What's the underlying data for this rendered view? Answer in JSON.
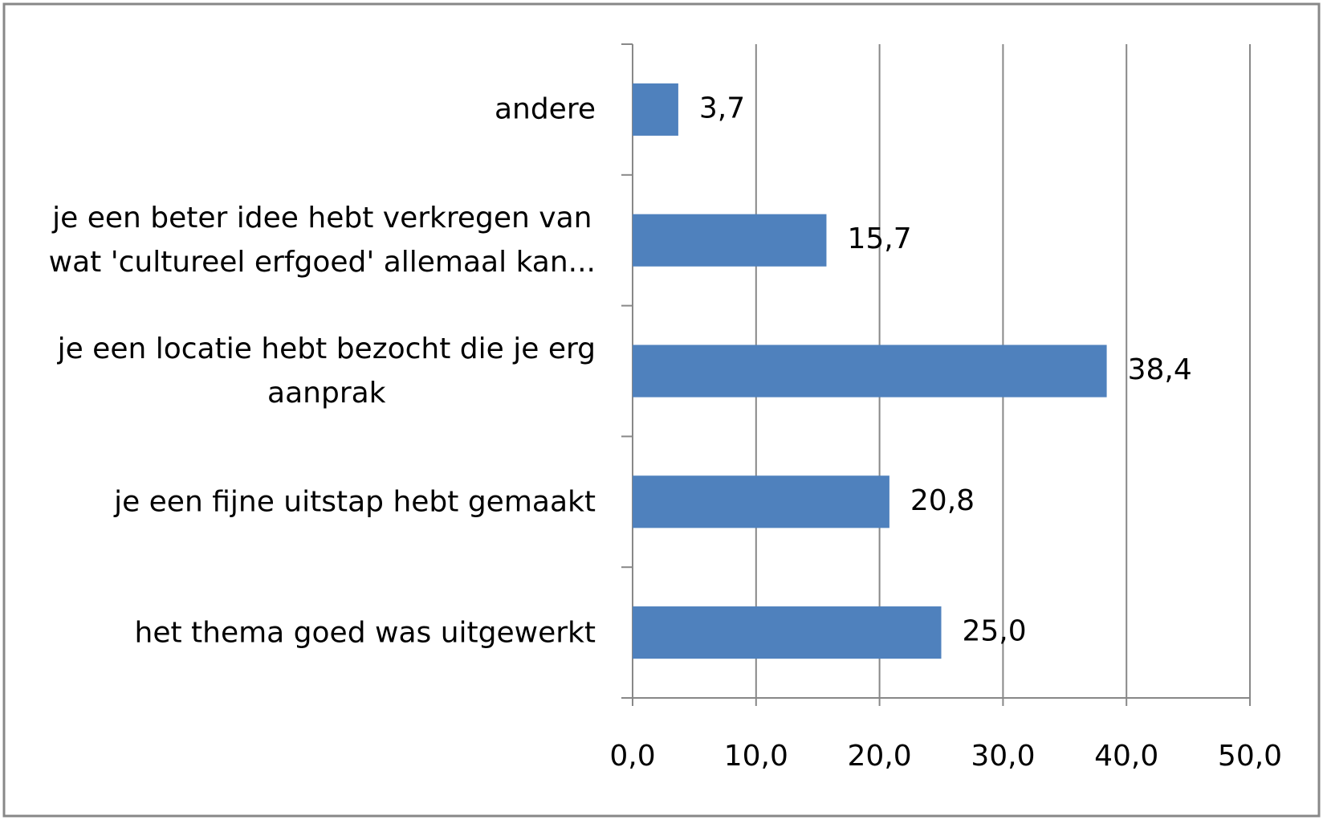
{
  "chart_data": {
    "type": "barh",
    "categories": [
      "andere",
      "je een beter idee hebt verkregen van\nwat 'cultureel erfgoed' allemaal kan...",
      "je een locatie hebt bezocht die je erg\naanprak",
      "je een fijne uitstap hebt gemaakt",
      "het thema goed was uitgewerkt"
    ],
    "values": [
      3.7,
      15.7,
      38.4,
      20.8,
      25.0
    ],
    "value_labels": [
      "3,7",
      "15,7",
      "38,4",
      "20,8",
      "25,0"
    ],
    "color": "#4f81bd",
    "xlim": [
      0,
      50
    ],
    "xticks": [
      {
        "value": 0,
        "label": "0,0"
      },
      {
        "value": 10,
        "label": "10,0"
      },
      {
        "value": 20,
        "label": "20,0"
      },
      {
        "value": 30,
        "label": "30,0"
      },
      {
        "value": 40,
        "label": "40,0"
      },
      {
        "value": 50,
        "label": "50,0"
      }
    ],
    "grid": true
  }
}
